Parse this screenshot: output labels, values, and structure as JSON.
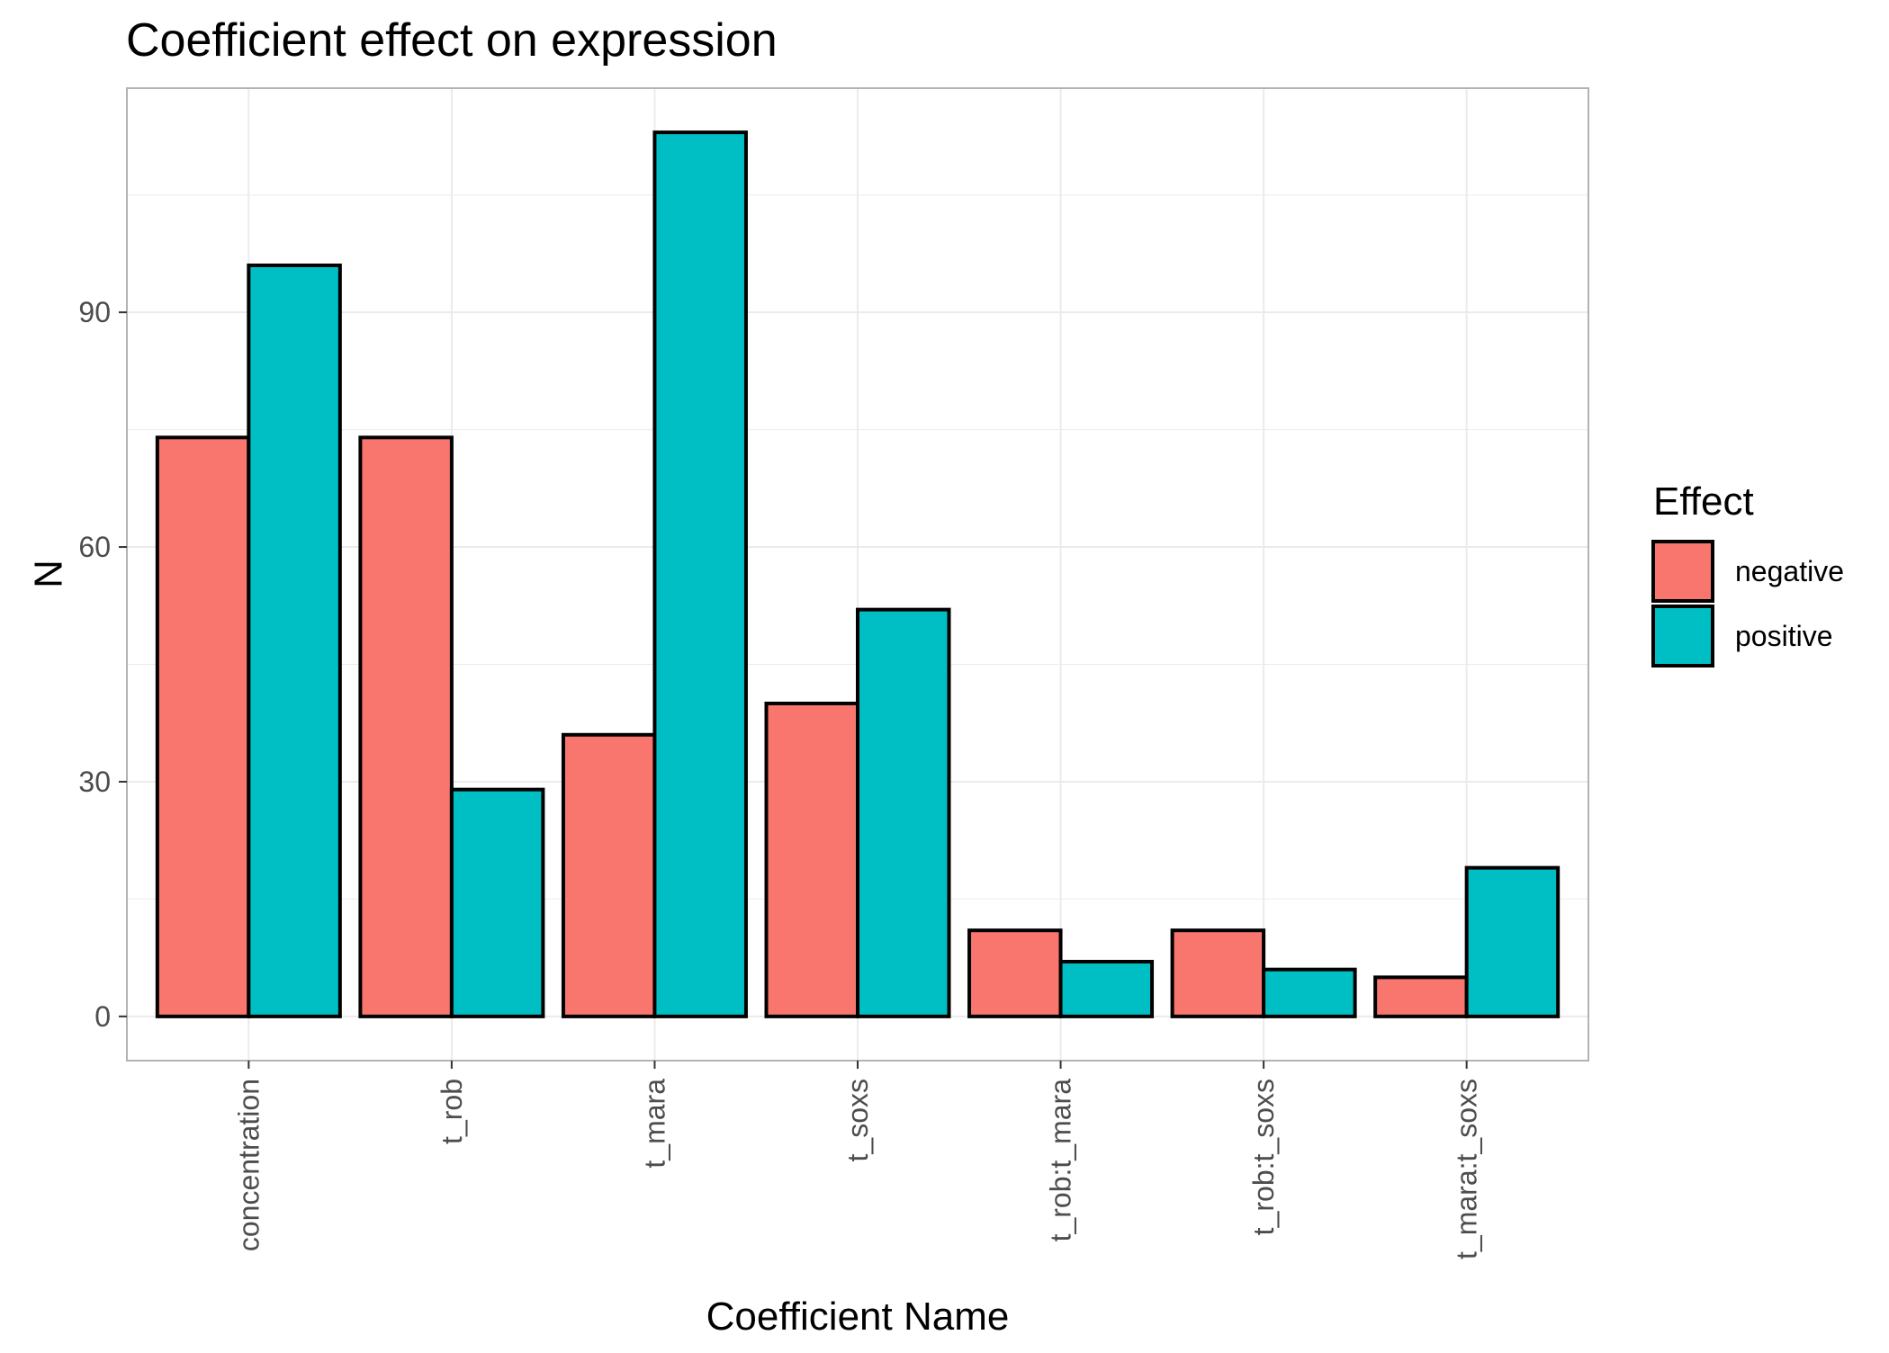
{
  "chart_data": {
    "type": "bar",
    "title": "Coefficient effect on expression",
    "xlabel": "Coefficient Name",
    "ylabel": "N",
    "categories": [
      "concentration",
      "t_rob",
      "t_mara",
      "t_soxs",
      "t_rob:t_mara",
      "t_rob:t_soxs",
      "t_mara:t_soxs"
    ],
    "series": [
      {
        "name": "negative",
        "color": "#F8766D",
        "values": [
          74,
          74,
          36,
          40,
          11,
          11,
          5
        ]
      },
      {
        "name": "positive",
        "color": "#00BFC4",
        "values": [
          96,
          29,
          113,
          52,
          7,
          6,
          19
        ]
      }
    ],
    "ylim": [
      -5.65,
      118.65
    ],
    "yticks": [
      0,
      30,
      60,
      90
    ],
    "grid": true,
    "legend": {
      "title": "Effect",
      "position": "right"
    },
    "x_tick_rotation": "vertical"
  }
}
